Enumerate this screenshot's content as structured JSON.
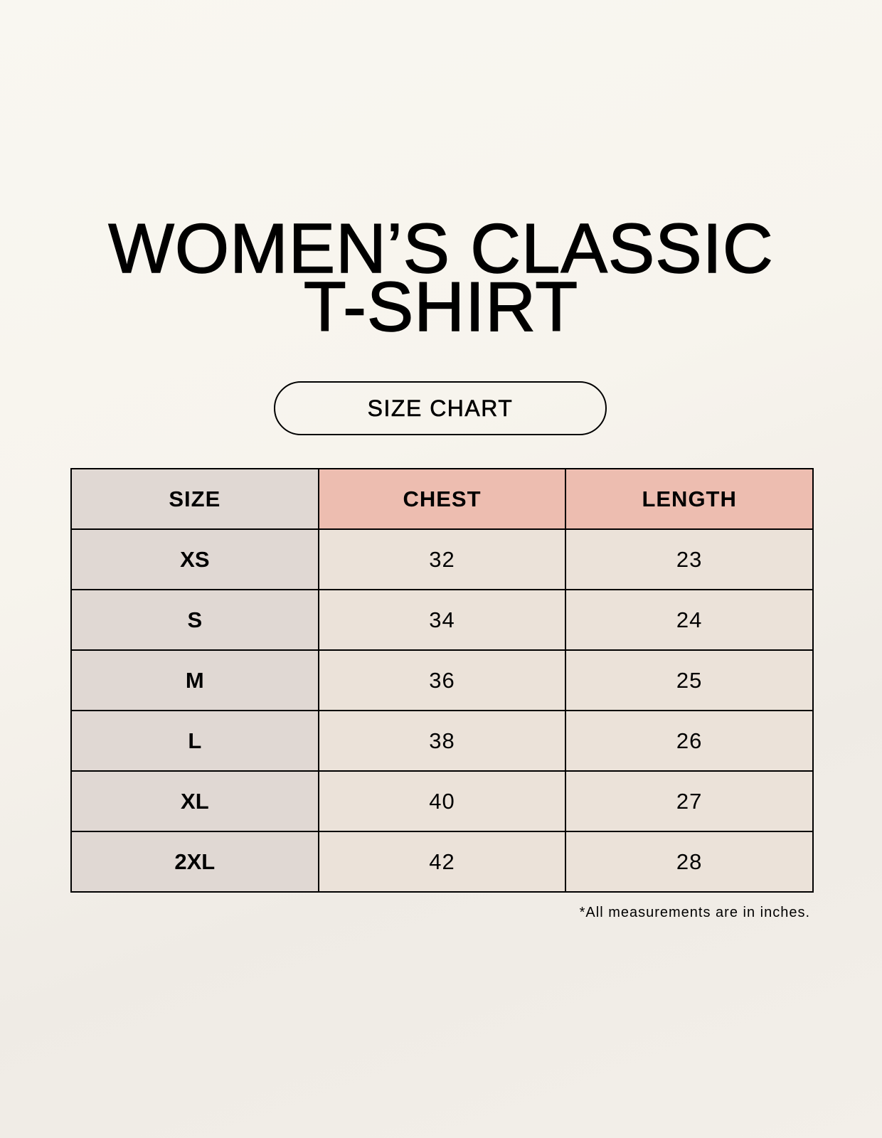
{
  "title": {
    "line1": "WOMEN’S CLASSIC",
    "line2": "T-SHIRT"
  },
  "subtitle": "SIZE CHART",
  "table": {
    "headers": [
      "SIZE",
      "CHEST",
      "LENGTH"
    ],
    "rows": [
      [
        "XS",
        "32",
        "23"
      ],
      [
        "S",
        "34",
        "24"
      ],
      [
        "M",
        "36",
        "25"
      ],
      [
        "L",
        "38",
        "26"
      ],
      [
        "XL",
        "40",
        "27"
      ],
      [
        "2XL",
        "42",
        "28"
      ]
    ]
  },
  "footnote": "*All measurements are in inches.",
  "colors": {
    "size_column": "#e0d8d3",
    "header_accent": "#edbdb0",
    "cell": "#ebe2d9"
  }
}
